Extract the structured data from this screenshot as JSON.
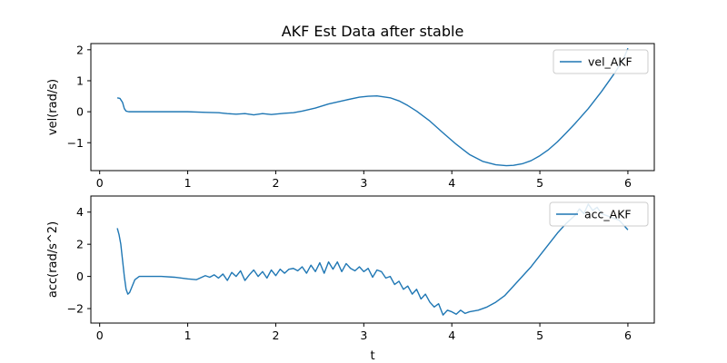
{
  "figure": {
    "title": "AKF Est Data after stable",
    "xlabel": "t",
    "line_color": "#1f77b4"
  },
  "chart_data": [
    {
      "type": "line",
      "ylabel": "vel(rad/s)",
      "xlim": [
        -0.1,
        6.3
      ],
      "ylim": [
        -1.9,
        2.2
      ],
      "xticks": [
        "0",
        "1",
        "2",
        "3",
        "4",
        "5",
        "6"
      ],
      "yticks": [
        "2",
        "1",
        "0",
        "−1"
      ],
      "legend_position": "top-right",
      "series": [
        {
          "name": "vel_AKF",
          "x": [
            0.2,
            0.23,
            0.26,
            0.28,
            0.3,
            0.33,
            0.4,
            0.6,
            0.8,
            1.0,
            1.2,
            1.35,
            1.45,
            1.55,
            1.65,
            1.75,
            1.85,
            1.95,
            2.1,
            2.2,
            2.3,
            2.45,
            2.6,
            2.8,
            2.95,
            3.05,
            3.15,
            3.3,
            3.4,
            3.5,
            3.6,
            3.75,
            3.9,
            4.05,
            4.2,
            4.35,
            4.5,
            4.62,
            4.7,
            4.8,
            4.9,
            5.0,
            5.1,
            5.2,
            5.3,
            5.4,
            5.55,
            5.7,
            5.85,
            5.95,
            6.0
          ],
          "y": [
            0.45,
            0.43,
            0.3,
            0.1,
            0.02,
            0.0,
            0.0,
            0.0,
            0.0,
            0.0,
            -0.02,
            -0.03,
            -0.06,
            -0.08,
            -0.06,
            -0.1,
            -0.06,
            -0.09,
            -0.05,
            -0.03,
            0.02,
            0.12,
            0.25,
            0.38,
            0.47,
            0.5,
            0.51,
            0.45,
            0.35,
            0.2,
            0.02,
            -0.3,
            -0.68,
            -1.05,
            -1.38,
            -1.6,
            -1.71,
            -1.74,
            -1.73,
            -1.68,
            -1.58,
            -1.42,
            -1.22,
            -0.97,
            -0.68,
            -0.38,
            0.1,
            0.65,
            1.25,
            1.7,
            2.05
          ]
        }
      ]
    },
    {
      "type": "line",
      "ylabel": "acc(rad/s^2)",
      "xlim": [
        -0.1,
        6.3
      ],
      "ylim": [
        -2.9,
        5.0
      ],
      "xticks": [
        "0",
        "1",
        "2",
        "3",
        "4",
        "5",
        "6"
      ],
      "yticks": [
        "4",
        "2",
        "0",
        "−2"
      ],
      "legend_position": "top-right",
      "series": [
        {
          "name": "acc_AKF",
          "x": [
            0.2,
            0.22,
            0.24,
            0.26,
            0.28,
            0.3,
            0.32,
            0.34,
            0.37,
            0.4,
            0.45,
            0.55,
            0.7,
            0.85,
            1.0,
            1.1,
            1.2,
            1.25,
            1.3,
            1.35,
            1.4,
            1.45,
            1.5,
            1.55,
            1.6,
            1.65,
            1.7,
            1.75,
            1.8,
            1.85,
            1.9,
            1.95,
            2.0,
            2.05,
            2.1,
            2.15,
            2.2,
            2.25,
            2.3,
            2.35,
            2.4,
            2.45,
            2.5,
            2.55,
            2.6,
            2.65,
            2.7,
            2.75,
            2.8,
            2.85,
            2.9,
            2.95,
            3.0,
            3.05,
            3.1,
            3.15,
            3.2,
            3.25,
            3.3,
            3.35,
            3.4,
            3.45,
            3.5,
            3.55,
            3.6,
            3.65,
            3.7,
            3.75,
            3.8,
            3.85,
            3.9,
            3.95,
            4.0,
            4.05,
            4.1,
            4.15,
            4.2,
            4.3,
            4.4,
            4.5,
            4.6,
            4.7,
            4.8,
            4.9,
            5.0,
            5.1,
            5.2,
            5.3,
            5.4,
            5.45,
            5.5,
            5.55,
            5.6,
            5.65,
            5.7,
            5.8,
            5.9,
            5.95,
            6.0
          ],
          "y": [
            3.0,
            2.6,
            2.0,
            1.0,
            0.0,
            -0.8,
            -1.1,
            -1.0,
            -0.6,
            -0.2,
            0.0,
            0.0,
            0.0,
            -0.05,
            -0.15,
            -0.2,
            0.05,
            -0.05,
            0.1,
            -0.1,
            0.15,
            -0.25,
            0.25,
            0.0,
            0.35,
            -0.25,
            0.1,
            0.4,
            0.0,
            0.3,
            -0.1,
            0.4,
            0.05,
            0.45,
            0.2,
            0.45,
            0.5,
            0.35,
            0.6,
            0.2,
            0.7,
            0.3,
            0.85,
            0.2,
            0.9,
            0.45,
            0.9,
            0.3,
            0.8,
            0.5,
            0.35,
            0.6,
            0.3,
            0.5,
            -0.05,
            0.4,
            0.3,
            -0.1,
            0.0,
            -0.5,
            -0.3,
            -0.8,
            -0.6,
            -1.1,
            -0.8,
            -1.4,
            -1.1,
            -1.6,
            -1.9,
            -1.7,
            -2.4,
            -2.1,
            -2.2,
            -2.35,
            -2.1,
            -2.3,
            -2.2,
            -2.1,
            -1.9,
            -1.6,
            -1.2,
            -0.6,
            0.0,
            0.6,
            1.3,
            2.0,
            2.7,
            3.3,
            3.8,
            4.2,
            3.9,
            4.5,
            4.1,
            4.3,
            3.9,
            3.7,
            3.5,
            3.2,
            2.9
          ]
        }
      ]
    }
  ]
}
